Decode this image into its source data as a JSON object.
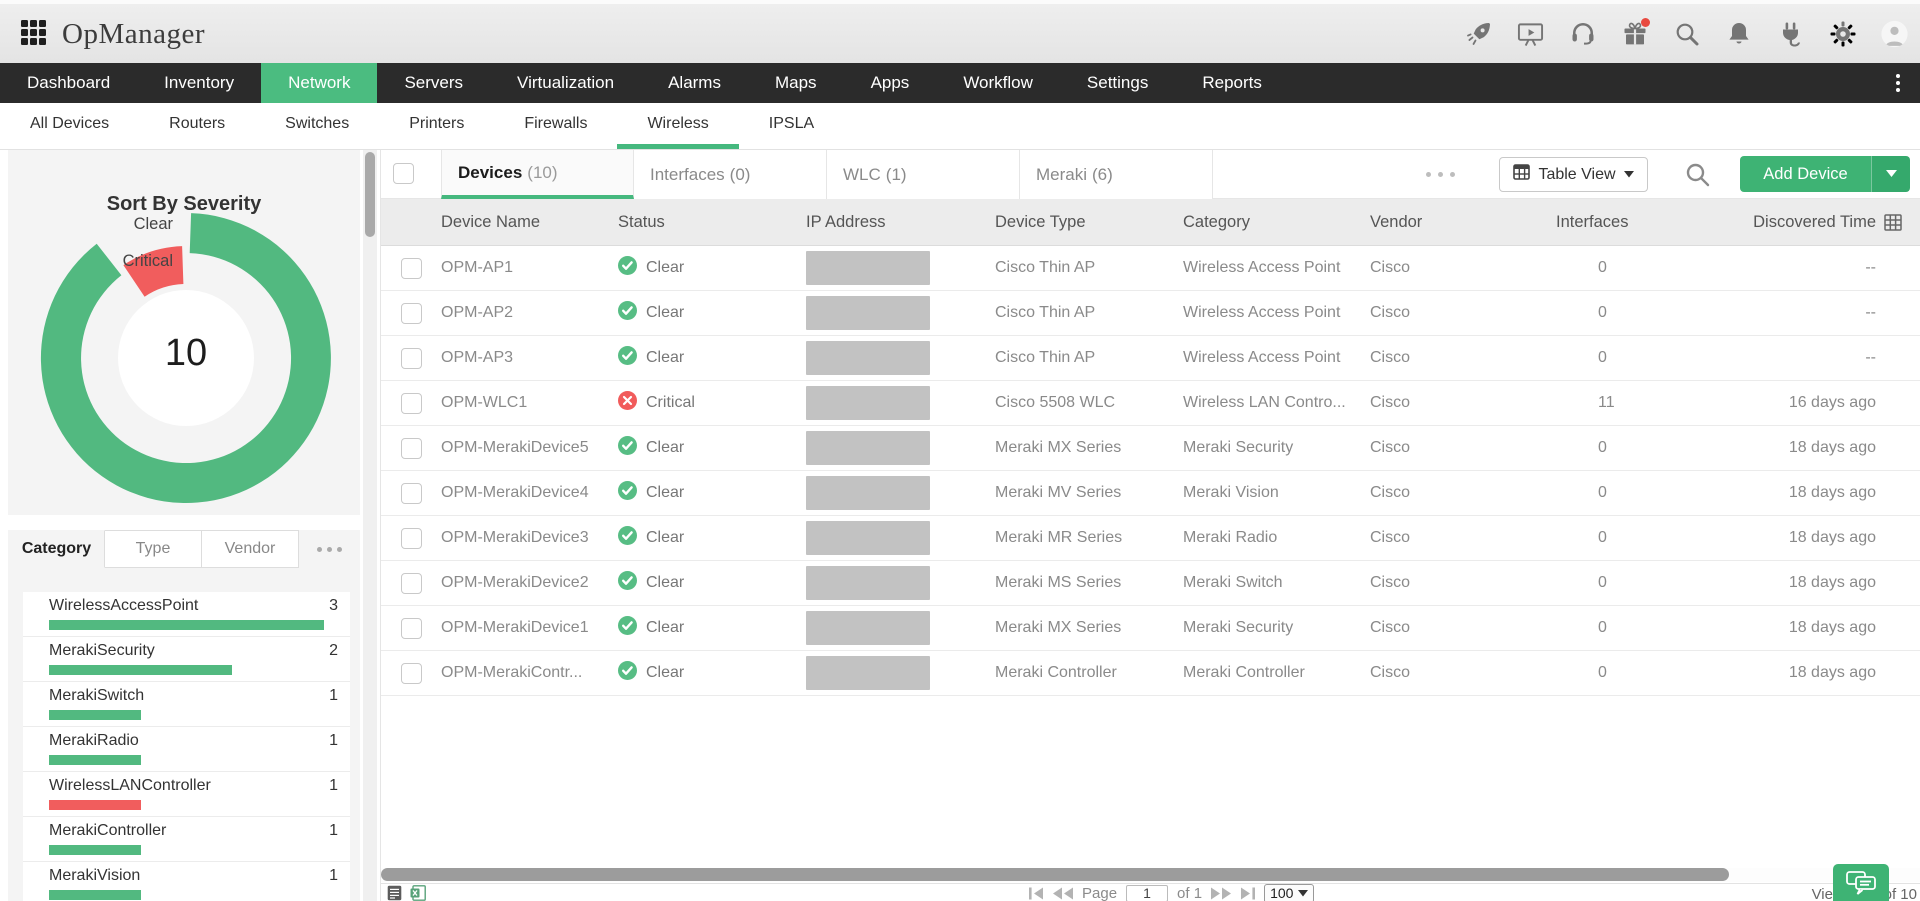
{
  "header": {
    "title": "OpManager",
    "icons": [
      "apps-grid-icon",
      "rocket-icon",
      "presentation-icon",
      "headset-icon",
      "gift-icon",
      "search-icon",
      "bell-icon",
      "plug-icon",
      "gear-icon",
      "avatar"
    ]
  },
  "nav": {
    "items": [
      {
        "label": "Dashboard",
        "active": false
      },
      {
        "label": "Inventory",
        "active": false
      },
      {
        "label": "Network",
        "active": true
      },
      {
        "label": "Servers",
        "active": false
      },
      {
        "label": "Virtualization",
        "active": false
      },
      {
        "label": "Alarms",
        "active": false
      },
      {
        "label": "Maps",
        "active": false
      },
      {
        "label": "Apps",
        "active": false
      },
      {
        "label": "Workflow",
        "active": false
      },
      {
        "label": "Settings",
        "active": false
      },
      {
        "label": "Reports",
        "active": false
      }
    ],
    "accent_color": "#4bbc80"
  },
  "subnav": {
    "items": [
      {
        "label": "All Devices",
        "active": false
      },
      {
        "label": "Routers",
        "active": false
      },
      {
        "label": "Switches",
        "active": false
      },
      {
        "label": "Printers",
        "active": false
      },
      {
        "label": "Firewalls",
        "active": false
      },
      {
        "label": "Wireless",
        "active": true
      },
      {
        "label": "IPSLA",
        "active": false
      }
    ]
  },
  "sidebar": {
    "severity_chart": {
      "type": "donut",
      "title": "Sort By Severity",
      "center_total": "10",
      "slices": [
        {
          "label": "Clear",
          "value": 9,
          "color": "#52b980"
        },
        {
          "label": "Critical",
          "value": 1,
          "color": "#f15d5d"
        }
      ]
    },
    "group_tabs": [
      {
        "label": "Category",
        "active": true
      },
      {
        "label": "Type",
        "active": false
      },
      {
        "label": "Vendor",
        "active": false
      }
    ],
    "category_chart": {
      "type": "bar",
      "items": [
        {
          "name": "WirelessAccessPoint",
          "count": 3,
          "color": "#52b980"
        },
        {
          "name": "MerakiSecurity",
          "count": 2,
          "color": "#52b980"
        },
        {
          "name": "MerakiSwitch",
          "count": 1,
          "color": "#52b980"
        },
        {
          "name": "MerakiRadio",
          "count": 1,
          "color": "#52b980"
        },
        {
          "name": "WirelessLANController",
          "count": 1,
          "color": "#f15d5d"
        },
        {
          "name": "MerakiController",
          "count": 1,
          "color": "#52b980"
        },
        {
          "name": "MerakiVision",
          "count": 1,
          "color": "#52b980"
        }
      ]
    }
  },
  "main": {
    "tabs": [
      {
        "label": "Devices",
        "count": "(10)",
        "active": true
      },
      {
        "label": "Interfaces",
        "count": "(0)",
        "active": false
      },
      {
        "label": "WLC",
        "count": "(1)",
        "active": false
      },
      {
        "label": "Meraki",
        "count": "(6)",
        "active": false
      }
    ],
    "toolbar": {
      "table_view_label": "Table View",
      "add_device_label": "Add Device"
    },
    "table": {
      "columns": [
        "Device Name",
        "Status",
        "IP Address",
        "Device Type",
        "Category",
        "Vendor",
        "Interfaces",
        "Discovered Time"
      ],
      "rows": [
        {
          "name": "OPM-AP1",
          "status": "Clear",
          "severity": "clear",
          "type": "Cisco Thin AP",
          "category": "Wireless Access Point",
          "vendor": "Cisco",
          "interfaces": "0",
          "discovered": "--"
        },
        {
          "name": "OPM-AP2",
          "status": "Clear",
          "severity": "clear",
          "type": "Cisco Thin AP",
          "category": "Wireless Access Point",
          "vendor": "Cisco",
          "interfaces": "0",
          "discovered": "--"
        },
        {
          "name": "OPM-AP3",
          "status": "Clear",
          "severity": "clear",
          "type": "Cisco Thin AP",
          "category": "Wireless Access Point",
          "vendor": "Cisco",
          "interfaces": "0",
          "discovered": "--"
        },
        {
          "name": "OPM-WLC1",
          "status": "Critical",
          "severity": "critical",
          "type": "Cisco 5508 WLC",
          "category": "Wireless LAN Contro...",
          "vendor": "Cisco",
          "interfaces": "11",
          "discovered": "16 days ago"
        },
        {
          "name": "OPM-MerakiDevice5",
          "status": "Clear",
          "severity": "clear",
          "type": "Meraki MX Series",
          "category": "Meraki Security",
          "vendor": "Cisco",
          "interfaces": "0",
          "discovered": "18 days ago"
        },
        {
          "name": "OPM-MerakiDevice4",
          "status": "Clear",
          "severity": "clear",
          "type": "Meraki MV Series",
          "category": "Meraki Vision",
          "vendor": "Cisco",
          "interfaces": "0",
          "discovered": "18 days ago"
        },
        {
          "name": "OPM-MerakiDevice3",
          "status": "Clear",
          "severity": "clear",
          "type": "Meraki MR Series",
          "category": "Meraki Radio",
          "vendor": "Cisco",
          "interfaces": "0",
          "discovered": "18 days ago"
        },
        {
          "name": "OPM-MerakiDevice2",
          "status": "Clear",
          "severity": "clear",
          "type": "Meraki MS Series",
          "category": "Meraki Switch",
          "vendor": "Cisco",
          "interfaces": "0",
          "discovered": "18 days ago"
        },
        {
          "name": "OPM-MerakiDevice1",
          "status": "Clear",
          "severity": "clear",
          "type": "Meraki MX Series",
          "category": "Meraki Security",
          "vendor": "Cisco",
          "interfaces": "0",
          "discovered": "18 days ago"
        },
        {
          "name": "OPM-MerakiContr...",
          "status": "Clear",
          "severity": "clear",
          "type": "Meraki Controller",
          "category": "Meraki Controller",
          "vendor": "Cisco",
          "interfaces": "0",
          "discovered": "18 days ago"
        }
      ],
      "status_colors": {
        "clear": "#57bd84",
        "critical": "#f15b5b"
      }
    },
    "pagination": {
      "page_label": "Page",
      "page_value": "1",
      "of_label": "of 1",
      "page_size": "100",
      "viewing_left": "Vie",
      "viewing_right": "of 10"
    }
  }
}
